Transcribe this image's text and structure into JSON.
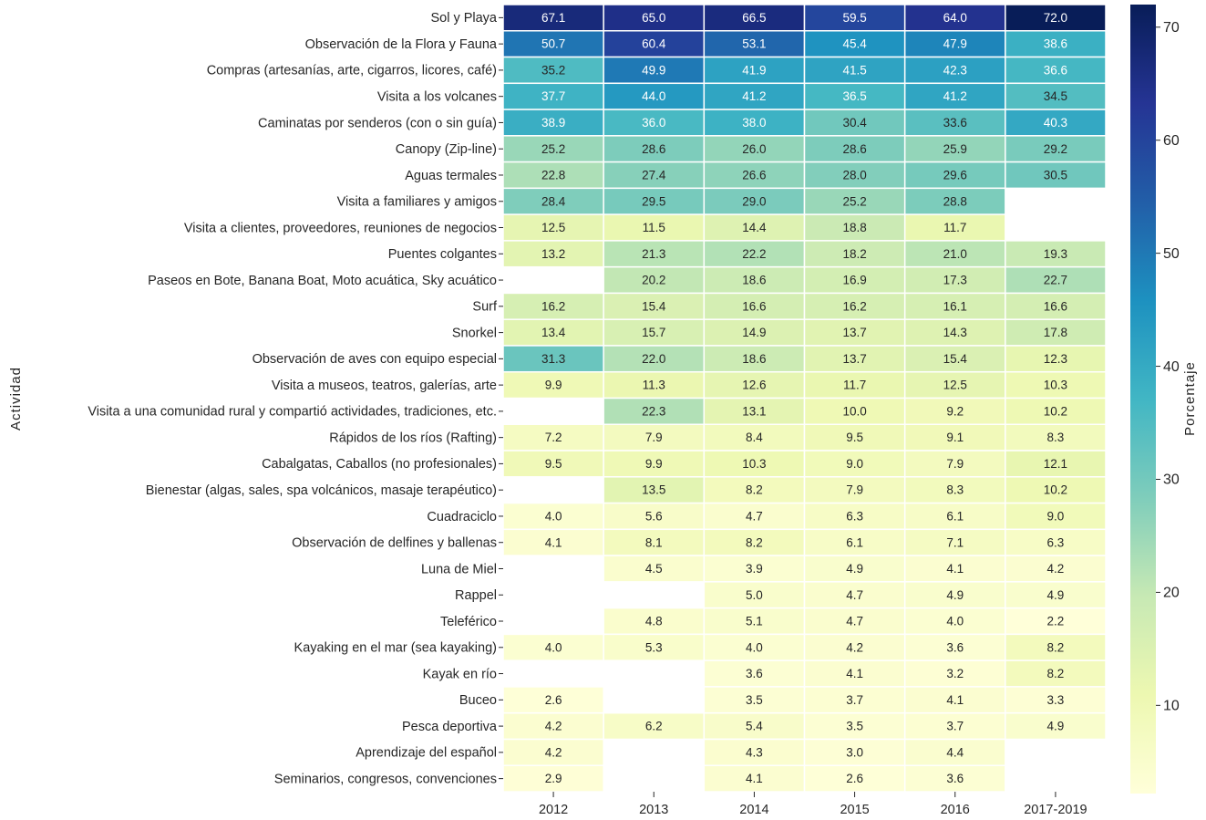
{
  "chart_data": {
    "type": "heatmap",
    "y_label": "Actividad",
    "colorbar_label": "Porcentaje",
    "x_categories": [
      "2012",
      "2013",
      "2014",
      "2015",
      "2016",
      "2017-2019"
    ],
    "categories": [
      "Sol y Playa",
      "Observación de la Flora y Fauna",
      "Compras (artesanías, arte, cigarros, licores, café)",
      "Visita a los volcanes",
      "Caminatas por senderos (con o sin guía)",
      "Canopy (Zip-line)",
      "Aguas termales",
      "Visita a familiares y amigos",
      "Visita a clientes, proveedores, reuniones de negocios",
      "Puentes colgantes",
      "Paseos en Bote, Banana Boat, Moto acuática, Sky acuático",
      "Surf",
      "Snorkel",
      "Observación de aves con equipo especial",
      "Visita a museos, teatros, galerías, arte",
      "Visita a una comunidad rural y compartió actividades, tradiciones, etc.",
      "Rápidos de los ríos (Rafting)",
      "Cabalgatas, Caballos (no profesionales)",
      "Bienestar (algas, sales, spa volcánicos, masaje terapéutico)",
      "Cuadraciclo",
      "Observación de delfines y ballenas",
      "Luna de Miel",
      "Rappel",
      "Teleférico",
      "Kayaking en el mar (sea kayaking)",
      "Kayak en río",
      "Buceo",
      "Pesca deportiva",
      "Aprendizaje del español",
      "Seminarios, congresos, convenciones"
    ],
    "values": [
      [
        67.1,
        65,
        66.5,
        59.5,
        64,
        72
      ],
      [
        50.7,
        60.4,
        53.1,
        45.4,
        47.9,
        38.6
      ],
      [
        35.2,
        49.9,
        41.9,
        41.5,
        42.3,
        36.6
      ],
      [
        37.7,
        44,
        41.2,
        36.5,
        41.2,
        34.5
      ],
      [
        38.9,
        36,
        38,
        30.4,
        33.6,
        40.3
      ],
      [
        25.2,
        28.6,
        26,
        28.6,
        25.9,
        29.2
      ],
      [
        22.8,
        27.4,
        26.6,
        28,
        29.6,
        30.5
      ],
      [
        28.4,
        29.5,
        29,
        25.2,
        28.8,
        null
      ],
      [
        12.5,
        11.5,
        14.4,
        18.8,
        11.7,
        null
      ],
      [
        13.2,
        21.3,
        22.2,
        18.2,
        21,
        19.3
      ],
      [
        null,
        20.2,
        18.6,
        16.9,
        17.3,
        22.7
      ],
      [
        16.2,
        15.4,
        16.6,
        16.2,
        16.1,
        16.6
      ],
      [
        13.4,
        15.7,
        14.9,
        13.7,
        14.3,
        17.8
      ],
      [
        31.3,
        22,
        18.6,
        13.7,
        15.4,
        12.3
      ],
      [
        9.9,
        11.3,
        12.6,
        11.7,
        12.5,
        10.3
      ],
      [
        null,
        22.3,
        13.1,
        10,
        9.2,
        10.2
      ],
      [
        7.2,
        7.9,
        8.4,
        9.5,
        9.1,
        8.3
      ],
      [
        9.5,
        9.9,
        10.3,
        9,
        7.9,
        12.1
      ],
      [
        null,
        13.5,
        8.2,
        7.9,
        8.3,
        10.2
      ],
      [
        4,
        5.6,
        4.7,
        6.3,
        6.1,
        9
      ],
      [
        4.1,
        8.1,
        8.2,
        6.1,
        7.1,
        6.3
      ],
      [
        null,
        4.5,
        3.9,
        4.9,
        4.1,
        4.2
      ],
      [
        null,
        null,
        5,
        4.7,
        4.9,
        4.9
      ],
      [
        null,
        4.8,
        5.1,
        4.7,
        4,
        2.2
      ],
      [
        4,
        5.3,
        4,
        4.2,
        3.6,
        8.2
      ],
      [
        null,
        null,
        3.6,
        4.1,
        3.2,
        8.2
      ],
      [
        2.6,
        null,
        3.5,
        3.7,
        4.1,
        3.3
      ],
      [
        4.2,
        6.2,
        5.4,
        3.5,
        3.7,
        4.9
      ],
      [
        4.2,
        null,
        4.3,
        3,
        4.4,
        null
      ],
      [
        2.9,
        null,
        4.1,
        2.6,
        3.6,
        null
      ]
    ],
    "value_labels": [
      [
        "67.1",
        "65.0",
        "66.5",
        "59.5",
        "64.0",
        "72.0"
      ],
      [
        "50.7",
        "60.4",
        "53.1",
        "45.4",
        "47.9",
        "38.6"
      ],
      [
        "35.2",
        "49.9",
        "41.9",
        "41.5",
        "42.3",
        "36.6"
      ],
      [
        "37.7",
        "44.0",
        "41.2",
        "36.5",
        "41.2",
        "34.5"
      ],
      [
        "38.9",
        "36.0",
        "38.0",
        "30.4",
        "33.6",
        "40.3"
      ],
      [
        "25.2",
        "28.6",
        "26.0",
        "28.6",
        "25.9",
        "29.2"
      ],
      [
        "22.8",
        "27.4",
        "26.6",
        "28.0",
        "29.6",
        "30.5"
      ],
      [
        "28.4",
        "29.5",
        "29.0",
        "25.2",
        "28.8",
        null
      ],
      [
        "12.5",
        "11.5",
        "14.4",
        "18.8",
        "11.7",
        null
      ],
      [
        "13.2",
        "21.3",
        "22.2",
        "18.2",
        "21.0",
        "19.3"
      ],
      [
        null,
        "20.2",
        "18.6",
        "16.9",
        "17.3",
        "22.7"
      ],
      [
        "16.2",
        "15.4",
        "16.6",
        "16.2",
        "16.1",
        "16.6"
      ],
      [
        "13.4",
        "15.7",
        "14.9",
        "13.7",
        "14.3",
        "17.8"
      ],
      [
        "31.3",
        "22.0",
        "18.6",
        "13.7",
        "15.4",
        "12.3"
      ],
      [
        "9.9",
        "11.3",
        "12.6",
        "11.7",
        "12.5",
        "10.3"
      ],
      [
        null,
        "22.3",
        "13.1",
        "10.0",
        "9.2",
        "10.2"
      ],
      [
        "7.2",
        "7.9",
        "8.4",
        "9.5",
        "9.1",
        "8.3"
      ],
      [
        "9.5",
        "9.9",
        "10.3",
        "9.0",
        "7.9",
        "12.1"
      ],
      [
        null,
        "13.5",
        "8.2",
        "7.9",
        "8.3",
        "10.2"
      ],
      [
        "4.0",
        "5.6",
        "4.7",
        "6.3",
        "6.1",
        "9.0"
      ],
      [
        "4.1",
        "8.1",
        "8.2",
        "6.1",
        "7.1",
        "6.3"
      ],
      [
        null,
        "4.5",
        "3.9",
        "4.9",
        "4.1",
        "4.2"
      ],
      [
        null,
        null,
        "5.0",
        "4.7",
        "4.9",
        "4.9"
      ],
      [
        null,
        "4.8",
        "5.1",
        "4.7",
        "4.0",
        "2.2"
      ],
      [
        "4.0",
        "5.3",
        "4.0",
        "4.2",
        "3.6",
        "8.2"
      ],
      [
        null,
        null,
        "3.6",
        "4.1",
        "3.2",
        "8.2"
      ],
      [
        "2.6",
        null,
        "3.5",
        "3.7",
        "4.1",
        "3.3"
      ],
      [
        "4.2",
        "6.2",
        "5.4",
        "3.5",
        "3.7",
        "4.9"
      ],
      [
        "4.2",
        null,
        "4.3",
        "3.0",
        "4.4",
        null
      ],
      [
        "2.9",
        null,
        "4.1",
        "2.6",
        "3.6",
        null
      ]
    ],
    "colormap": [
      "#ffffd9",
      "#edf8b1",
      "#c7e9b4",
      "#7fcdbb",
      "#41b6c4",
      "#1d91c0",
      "#225ea8",
      "#253494",
      "#081d58"
    ],
    "zlim": [
      2.2,
      72
    ],
    "zticks": [
      10,
      20,
      30,
      40,
      50,
      60,
      70
    ]
  }
}
